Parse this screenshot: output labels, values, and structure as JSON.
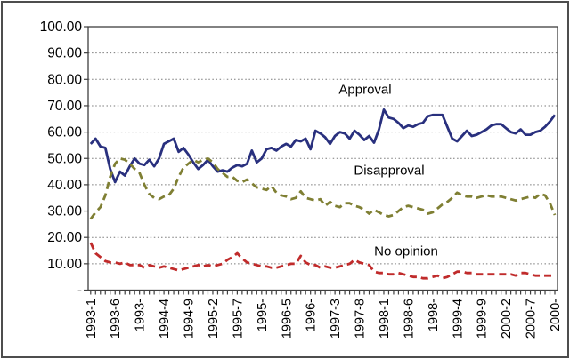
{
  "chart_data": {
    "type": "line",
    "title": "",
    "xlabel": "",
    "ylabel": "",
    "ylim": [
      0,
      100
    ],
    "grid": "horizontal-dotted",
    "legend": "inline-annotations",
    "n_points": 96,
    "x_tick_every": 5,
    "x_tick_labels": [
      "1993-1",
      "1993-6",
      "1993-",
      "1994-4",
      "1994-9",
      "1995-2",
      "1995-7",
      "1995-",
      "1996-5",
      "1996-",
      "1997-3",
      "1997-8",
      "1998-1",
      "1998-6",
      "1998-",
      "1999-4",
      "1999-9",
      "2000-2",
      "2000-7",
      "2000-"
    ],
    "y_tick_labels": [
      "-",
      "10.00",
      "20.00",
      "30.00",
      "40.00",
      "50.00",
      "60.00",
      "70.00",
      "80.00",
      "90.00",
      "100.00"
    ],
    "series": [
      {
        "name": "Approval",
        "color": "#29307E",
        "style": "solid",
        "values": [
          55.5,
          57.5,
          54.5,
          54,
          46,
          41,
          45,
          43.5,
          47,
          50,
          48,
          47.5,
          49.5,
          47,
          50,
          55.5,
          56.5,
          57.5,
          52.5,
          54,
          51.5,
          48.5,
          46,
          47.5,
          49.5,
          47,
          45,
          45.5,
          45,
          46.5,
          47.5,
          47,
          48,
          53,
          48.5,
          50,
          53.5,
          54,
          53,
          54.5,
          55.5,
          54.5,
          57,
          56.5,
          57.5,
          53.5,
          60.5,
          59.5,
          58,
          55.5,
          58.5,
          60,
          59.5,
          57.5,
          60.5,
          59,
          57,
          58.5,
          56,
          61,
          68.5,
          65.5,
          65,
          63.5,
          61.5,
          62.5,
          62,
          63,
          63.5,
          66,
          66.5,
          66.5,
          66.5,
          62,
          57.5,
          56.5,
          58.5,
          60.5,
          58.5,
          59,
          60,
          61,
          62.5,
          63,
          63,
          61.5,
          60,
          59.5,
          61,
          59,
          59,
          60,
          60.5,
          62,
          64,
          66.5
        ]
      },
      {
        "name": "Disapproval",
        "color": "#7F7F33",
        "style": "dashed",
        "values": [
          27,
          29.5,
          31.5,
          36,
          43,
          48,
          50,
          49.5,
          48,
          46,
          44.5,
          40,
          36.5,
          35,
          34.5,
          35.5,
          36,
          38.5,
          43,
          46.5,
          48,
          49.5,
          48.5,
          49.5,
          50,
          48.5,
          46,
          44.5,
          43,
          43,
          41.5,
          41,
          42,
          40.5,
          39,
          38.5,
          38,
          39.5,
          37,
          36,
          35.5,
          34.5,
          35,
          37.5,
          35,
          34.5,
          34,
          34.5,
          32,
          33.5,
          32,
          31.5,
          33,
          33,
          32,
          31.5,
          30.5,
          29,
          30.5,
          29.5,
          28.5,
          28,
          28.5,
          30,
          31.5,
          32,
          31.5,
          31,
          30.5,
          29,
          29.5,
          31,
          32.5,
          33.5,
          35,
          37,
          36,
          35.5,
          35.5,
          35,
          35.5,
          36,
          35.5,
          35.5,
          35.5,
          35,
          34.5,
          34,
          34.5,
          35,
          35.5,
          35,
          36.5,
          36,
          33,
          28.5
        ]
      },
      {
        "name": "No opinion",
        "color": "#C02B2B",
        "style": "dashed",
        "values": [
          18,
          14,
          12.5,
          11,
          10.5,
          10.5,
          10,
          10.5,
          9.5,
          9.5,
          9.5,
          8.5,
          9.5,
          9,
          8.5,
          9,
          8.5,
          8,
          7.5,
          8,
          8.5,
          9,
          9.5,
          9,
          9.5,
          9,
          9.5,
          10,
          11.5,
          12.5,
          14,
          12,
          10.5,
          10,
          9.5,
          9,
          9,
          8.5,
          8.5,
          9,
          9.5,
          10,
          10,
          13,
          10.5,
          9.5,
          9.5,
          8.5,
          9,
          8.5,
          8.5,
          9,
          9.5,
          10,
          11.5,
          10.5,
          10,
          9.5,
          7,
          6.5,
          6.5,
          6,
          6,
          6.5,
          6,
          5.5,
          5,
          5,
          4.5,
          4.5,
          5,
          5.5,
          4.5,
          5,
          6,
          7,
          7,
          6.5,
          6.5,
          6,
          6,
          6,
          6,
          6,
          6,
          6,
          6,
          5.5,
          6.5,
          6.5,
          6,
          5.5,
          5.5,
          5.5,
          5.5,
          5.5
        ]
      }
    ],
    "annotations": [
      {
        "text": "Approval"
      },
      {
        "text": "Disapproval"
      },
      {
        "text": "No opinion"
      }
    ]
  }
}
